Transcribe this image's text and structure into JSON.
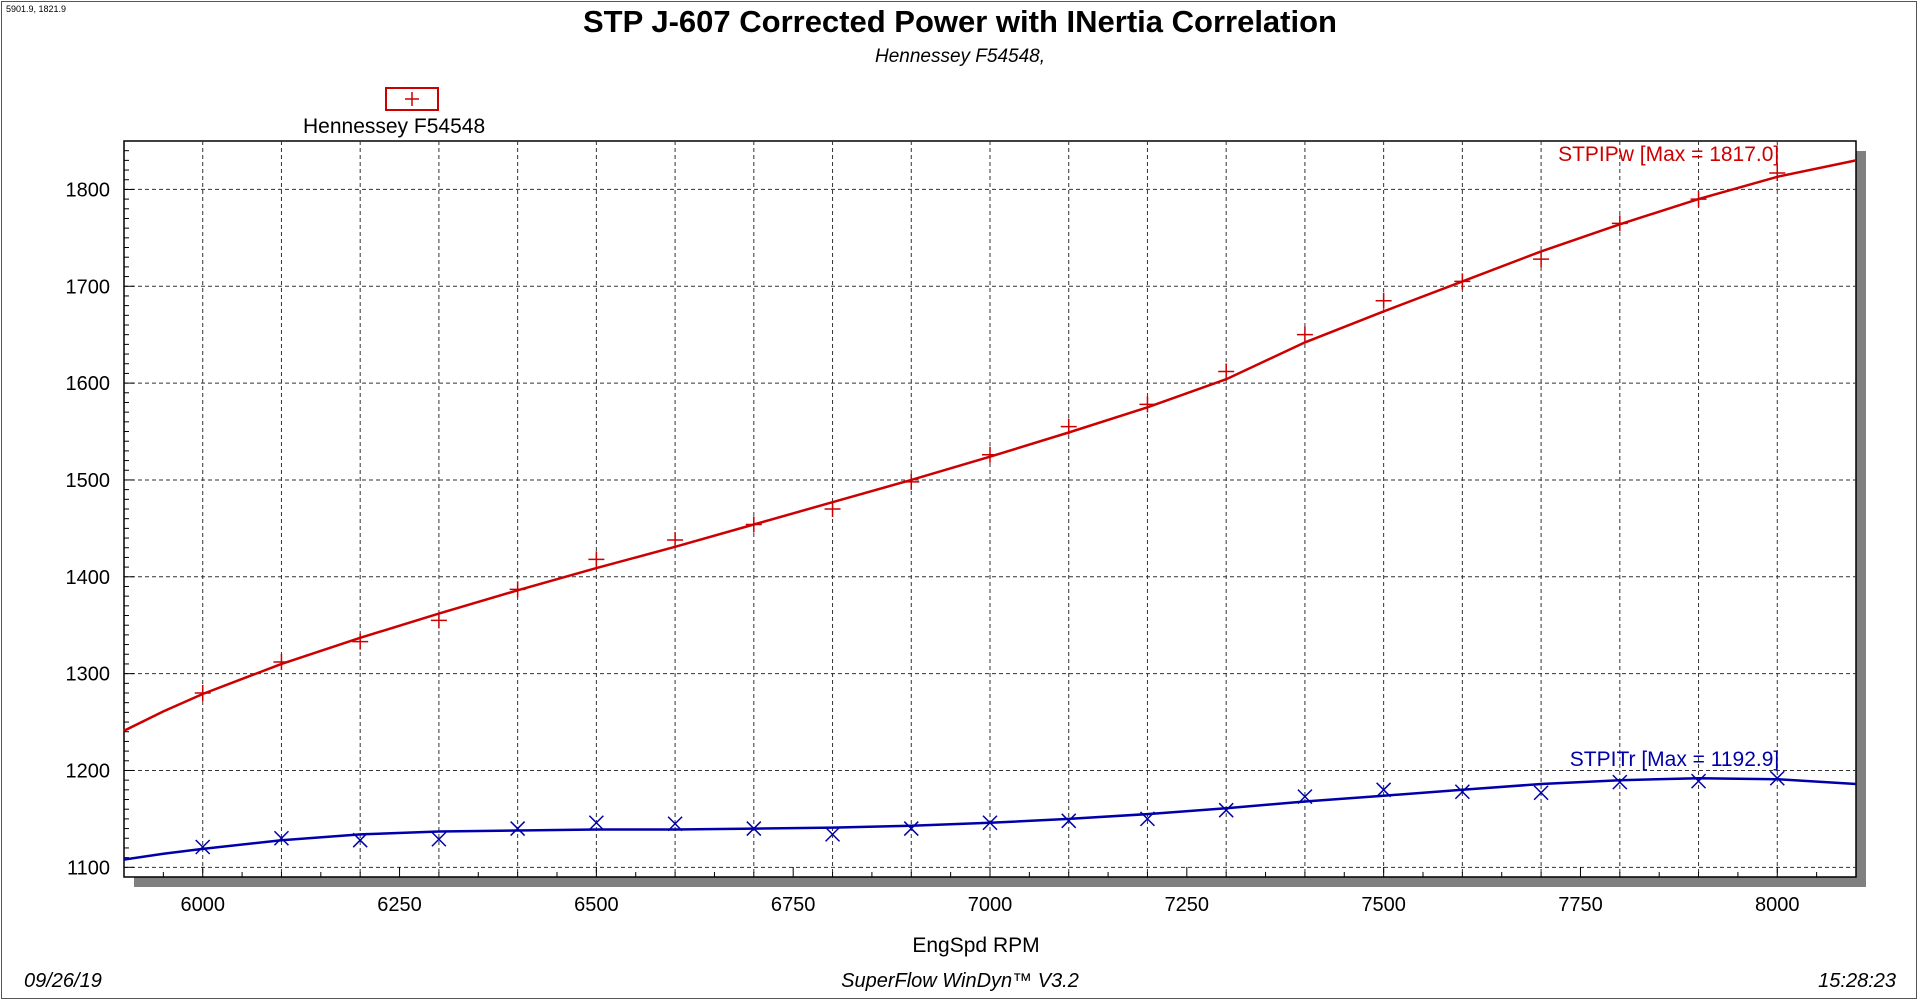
{
  "header": {
    "cursor_readout": "5901.9, 1821.9",
    "title": "STP J-607 Corrected Power with INertia Correlation",
    "subtitle": "Hennessey F54548,"
  },
  "legend": {
    "entries": [
      {
        "label": "Hennessey F54548",
        "marker": "plus",
        "color": "#cc0000"
      }
    ]
  },
  "footer": {
    "date": "09/26/19",
    "software": "SuperFlow WinDyn™ V3.2",
    "time": "15:28:23"
  },
  "colors": {
    "power": "#cc0000",
    "torque": "#0000aa",
    "grid": "#333333",
    "shadow": "#808080"
  },
  "chart_data": {
    "type": "line",
    "xlabel": "EngSpd RPM",
    "ylabel": "",
    "xlim": [
      5900,
      8100
    ],
    "ylim": [
      1090,
      1850
    ],
    "xticks": [
      6000,
      6250,
      6500,
      6750,
      7000,
      7250,
      7500,
      7750,
      8000
    ],
    "xgrid_step": 100,
    "yticks": [
      1100,
      1200,
      1300,
      1400,
      1500,
      1600,
      1700,
      1800
    ],
    "ygrid_step": 100,
    "grid": true,
    "legend_position": "top-left",
    "series": [
      {
        "name": "STPIPw",
        "label": "STPIPw [Max = 1817.0]",
        "color_key": "power",
        "marker": "plus",
        "points_x": [
          6000,
          6100,
          6200,
          6300,
          6400,
          6500,
          6600,
          6700,
          6800,
          6900,
          7000,
          7100,
          7200,
          7300,
          7400,
          7500,
          7600,
          7700,
          7800,
          7900,
          8000
        ],
        "points_y": [
          1280,
          1312,
          1333,
          1355,
          1387,
          1418,
          1438,
          1454,
          1470,
          1498,
          1526,
          1555,
          1578,
          1612,
          1650,
          1685,
          1705,
          1728,
          1765,
          1790,
          1817
        ],
        "line_x": [
          5900,
          5950,
          6000,
          6100,
          6200,
          6300,
          6400,
          6500,
          6600,
          6700,
          6800,
          6900,
          7000,
          7100,
          7200,
          7300,
          7400,
          7500,
          7600,
          7700,
          7800,
          7900,
          8000,
          8100
        ],
        "line_y": [
          1241,
          1261,
          1279,
          1310,
          1337,
          1362,
          1386,
          1409,
          1431,
          1454,
          1477,
          1500,
          1524,
          1549,
          1575,
          1604,
          1642,
          1674,
          1705,
          1736,
          1764,
          1790,
          1813,
          1830
        ]
      },
      {
        "name": "STPITr",
        "label": "STPITr [Max = 1192.9]",
        "color_key": "torque",
        "marker": "x",
        "points_x": [
          6000,
          6100,
          6200,
          6300,
          6400,
          6500,
          6600,
          6700,
          6800,
          6900,
          7000,
          7100,
          7200,
          7300,
          7400,
          7500,
          7600,
          7700,
          7800,
          7900,
          8000
        ],
        "points_y": [
          1121,
          1130,
          1128,
          1129,
          1140,
          1146,
          1145,
          1140,
          1134,
          1140,
          1146,
          1148,
          1150,
          1159,
          1173,
          1180,
          1178,
          1177,
          1188,
          1189,
          1192
        ],
        "line_x": [
          5900,
          5950,
          6000,
          6100,
          6200,
          6300,
          6400,
          6500,
          6600,
          6700,
          6800,
          6900,
          7000,
          7100,
          7200,
          7300,
          7400,
          7500,
          7600,
          7700,
          7800,
          7900,
          8000,
          8100
        ],
        "line_y": [
          1108,
          1114,
          1119,
          1128,
          1134,
          1137,
          1138,
          1139,
          1139,
          1140,
          1141,
          1143,
          1146,
          1150,
          1155,
          1161,
          1168,
          1174,
          1180,
          1186,
          1190,
          1192,
          1191,
          1186
        ]
      }
    ]
  }
}
